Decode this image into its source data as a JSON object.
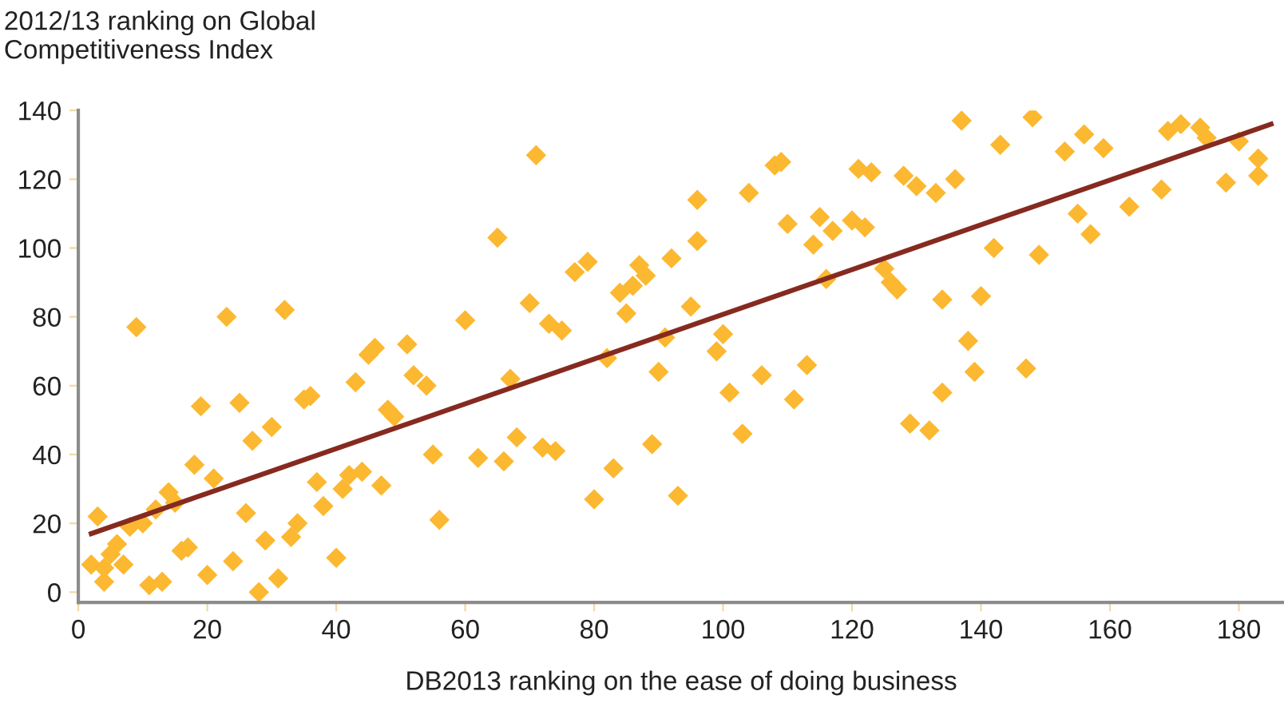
{
  "chart_data": {
    "type": "scatter",
    "ylabel": "2012/13 ranking on Global\nCompetitiveness Index",
    "xlabel": "DB2013 ranking on the ease of doing business",
    "xlim": [
      0,
      187
    ],
    "ylim": [
      -3,
      140
    ],
    "xticks": [
      0,
      20,
      40,
      60,
      80,
      100,
      120,
      140,
      160,
      180
    ],
    "yticks": [
      0,
      20,
      40,
      60,
      80,
      100,
      120,
      140
    ],
    "grid": false,
    "legend": false,
    "marker": "diamond",
    "series": [
      {
        "color": "#fbb830",
        "x": [
          2,
          3,
          4,
          4,
          5,
          6,
          7,
          8,
          9,
          10,
          11,
          12,
          13,
          14,
          15,
          16,
          17,
          18,
          19,
          20,
          21,
          23,
          24,
          25,
          26,
          27,
          28,
          29,
          30,
          31,
          32,
          33,
          34,
          35,
          36,
          37,
          38,
          40,
          41,
          42,
          43,
          44,
          45,
          46,
          47,
          48,
          49,
          51,
          52,
          54,
          55,
          56,
          60,
          62,
          65,
          66,
          67,
          68,
          70,
          71,
          72,
          73,
          74,
          75,
          77,
          79,
          80,
          82,
          83,
          84,
          85,
          86,
          87,
          88,
          89,
          90,
          91,
          92,
          93,
          95,
          96,
          96,
          99,
          100,
          101,
          103,
          104,
          106,
          108,
          109,
          110,
          111,
          113,
          114,
          115,
          116,
          117,
          120,
          121,
          122,
          123,
          125,
          126,
          127,
          128,
          129,
          130,
          132,
          133,
          134,
          134,
          136,
          137,
          138,
          139,
          140,
          142,
          143,
          147,
          148,
          149,
          153,
          155,
          156,
          157,
          159,
          163,
          168,
          169,
          171,
          174,
          175,
          178,
          180,
          183,
          183
        ],
        "values": [
          8,
          22,
          3,
          7,
          11,
          14,
          8,
          19,
          77,
          20,
          2,
          24,
          3,
          29,
          26,
          12,
          13,
          37,
          54,
          5,
          33,
          80,
          9,
          55,
          23,
          44,
          0,
          15,
          48,
          4,
          82,
          16,
          20,
          56,
          57,
          32,
          25,
          10,
          30,
          34,
          61,
          35,
          69,
          71,
          31,
          53,
          51,
          72,
          63,
          60,
          40,
          21,
          79,
          39,
          103,
          38,
          62,
          45,
          84,
          127,
          42,
          78,
          41,
          76,
          93,
          96,
          27,
          68,
          36,
          87,
          81,
          89,
          95,
          92,
          43,
          64,
          74,
          97,
          28,
          83,
          102,
          114,
          70,
          75,
          58,
          46,
          116,
          63,
          124,
          125,
          107,
          56,
          66,
          101,
          109,
          91,
          105,
          108,
          123,
          106,
          122,
          94,
          90,
          88,
          121,
          49,
          118,
          47,
          116,
          58,
          85,
          120,
          137,
          73,
          64,
          86,
          100,
          130,
          65,
          138,
          98,
          128,
          110,
          133,
          104,
          129,
          112,
          117,
          134,
          136,
          135,
          132,
          119,
          131,
          126,
          121
        ]
      },
      {
        "type": "line",
        "color": "#862a20",
        "marker": "none",
        "line_style": "solid",
        "x": [
          2,
          185
        ],
        "values": [
          17,
          136
        ]
      }
    ]
  }
}
